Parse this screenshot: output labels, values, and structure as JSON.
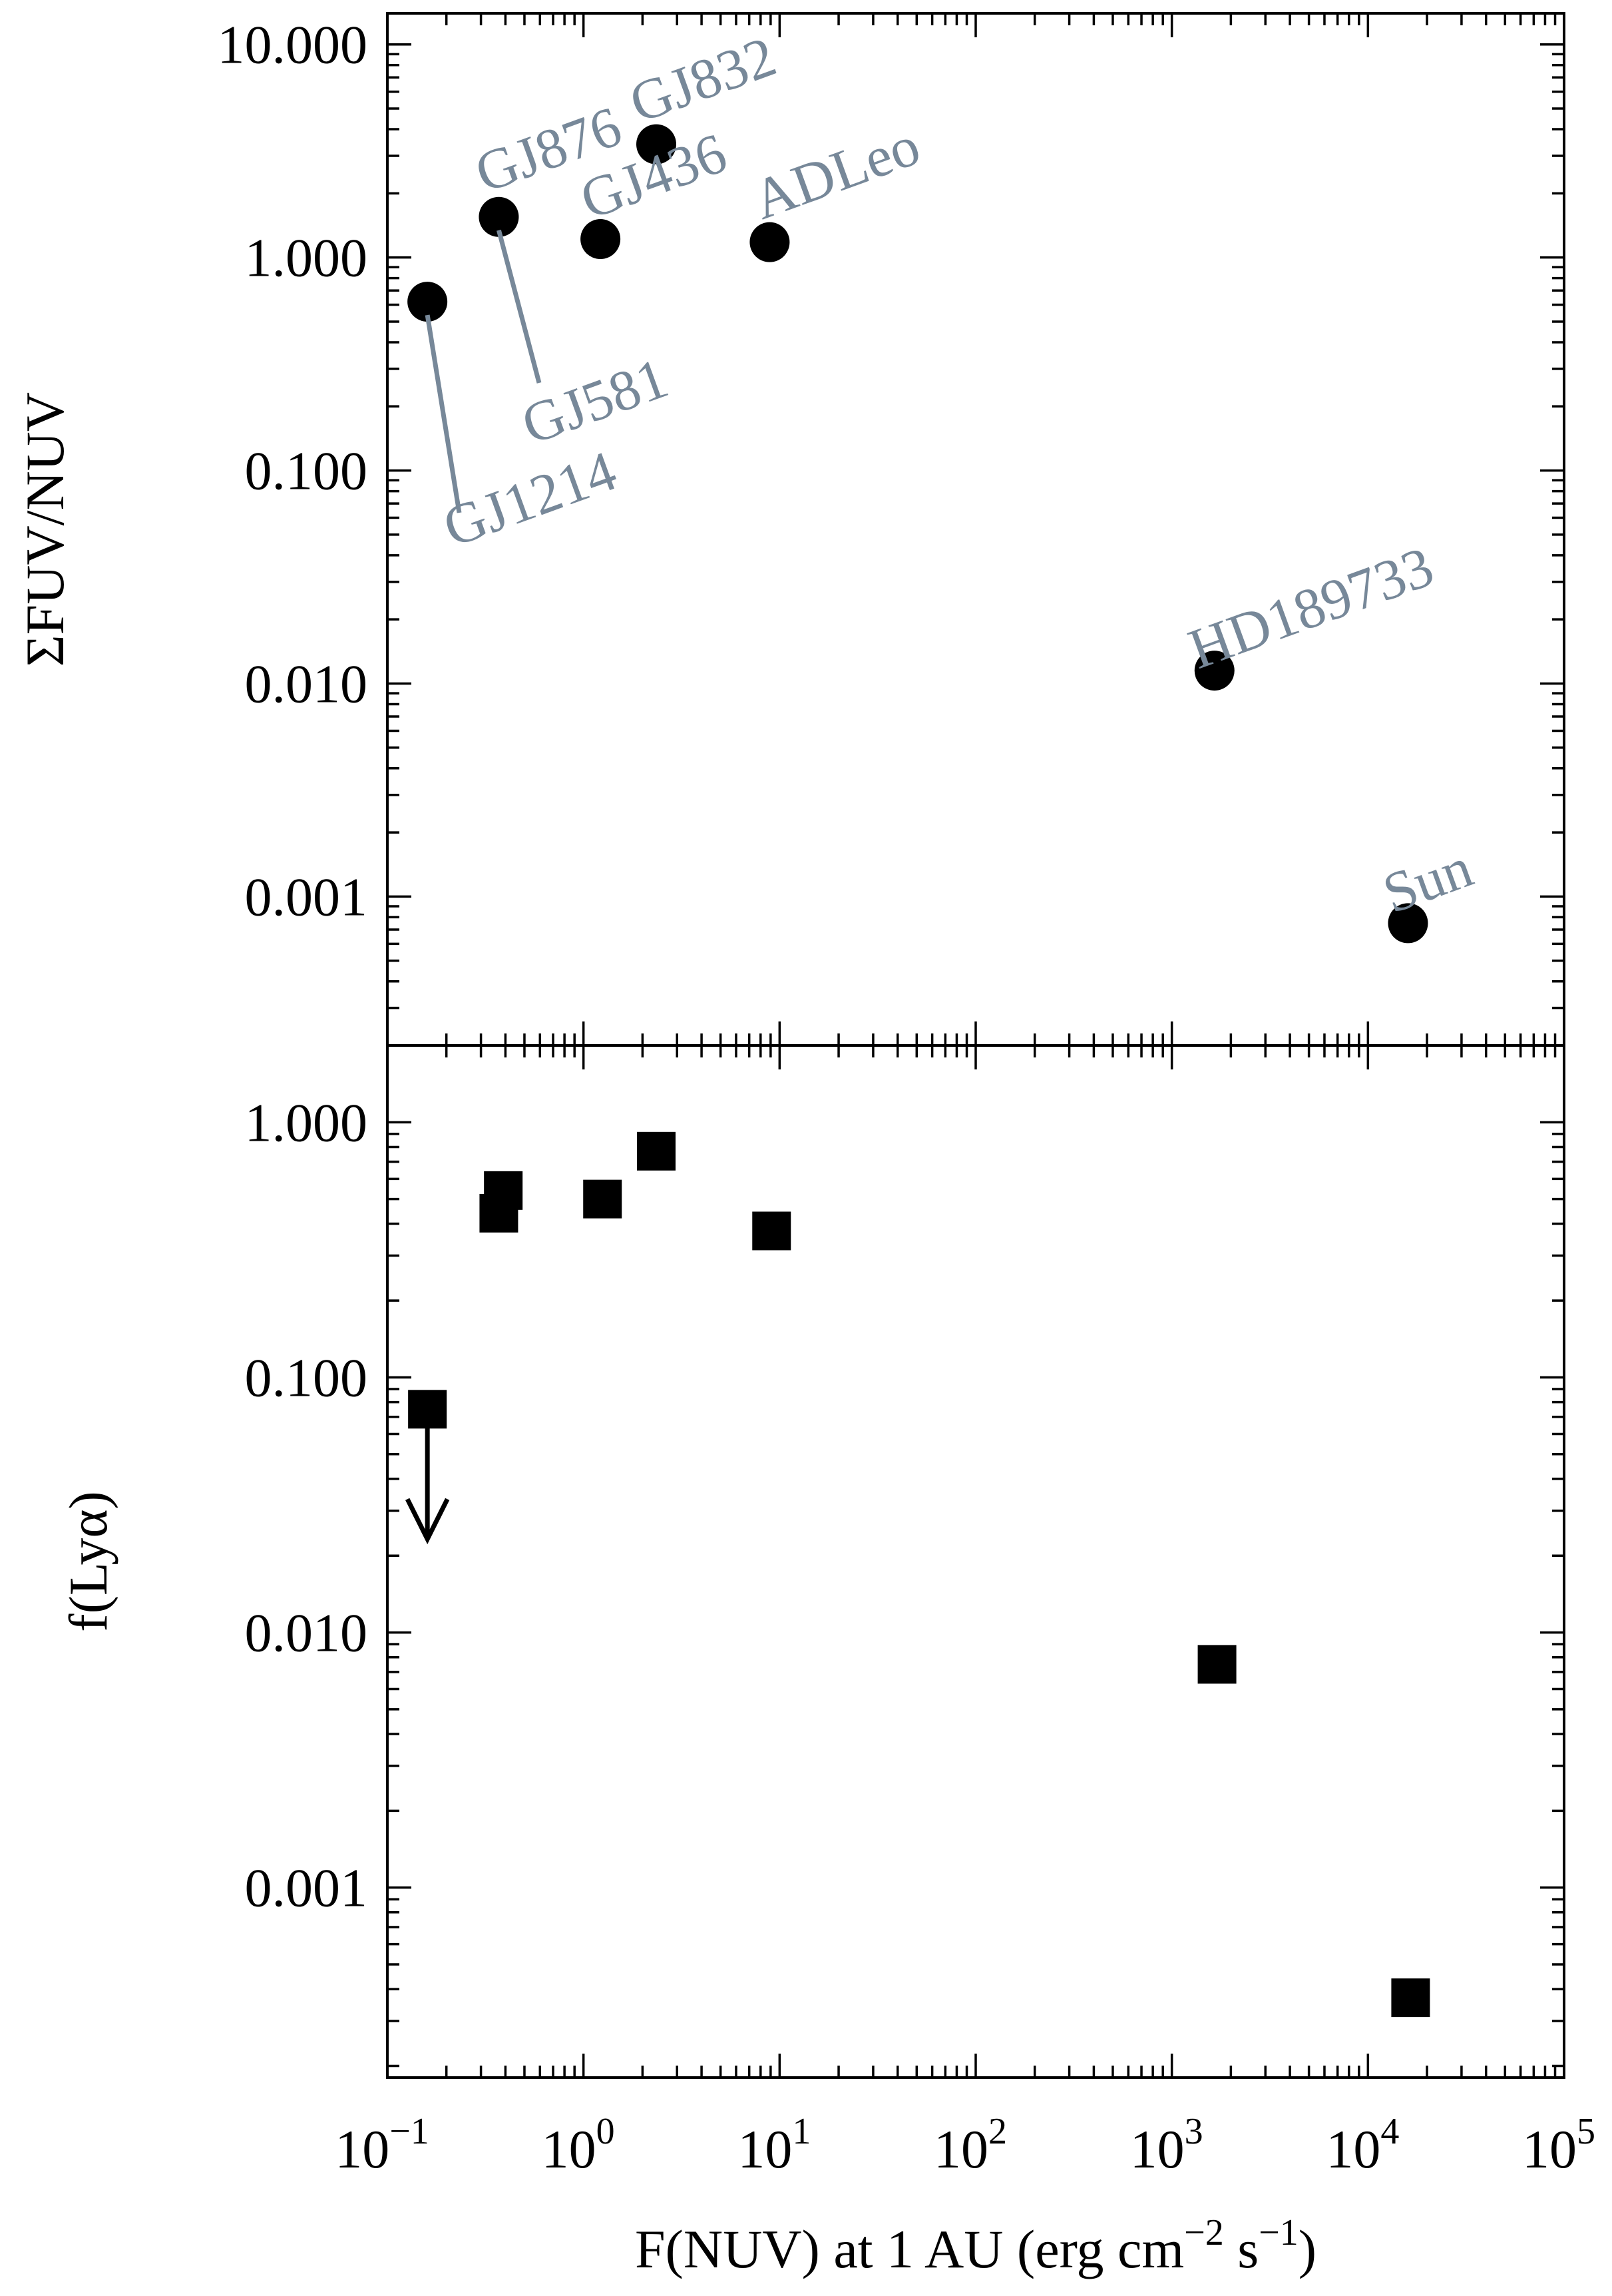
{
  "colors": {
    "marker": "#000000",
    "label": "#778899",
    "axes": "#000000"
  },
  "chart_data": [
    {
      "type": "scatter",
      "panel": "top",
      "marker": "circle",
      "xscale": "log",
      "yscale": "log",
      "xlim": [
        0.1,
        100000
      ],
      "ylim": [
        0.0002,
        14
      ],
      "ylabel": "ΣFUV/NUV",
      "yticks": [
        {
          "value": 10,
          "label": "10.000"
        },
        {
          "value": 1,
          "label": "1.000"
        },
        {
          "value": 0.1,
          "label": "0.100"
        },
        {
          "value": 0.01,
          "label": "0.010"
        },
        {
          "value": 0.001,
          "label": "0.001"
        }
      ],
      "points": [
        {
          "name": "GJ1214",
          "x": 0.16,
          "y": 0.62
        },
        {
          "name": "GJ876",
          "x": 0.37,
          "y": 1.55
        },
        {
          "name": "GJ581",
          "x": 0.37,
          "y": 1.55
        },
        {
          "name": "GJ436",
          "x": 1.22,
          "y": 1.22
        },
        {
          "name": "GJ832",
          "x": 2.35,
          "y": 3.4
        },
        {
          "name": "ADLeo",
          "x": 8.9,
          "y": 1.18
        },
        {
          "name": "HD189733",
          "x": 1650,
          "y": 0.0115
        },
        {
          "name": "Sun",
          "x": 16000,
          "y": 0.00075
        }
      ]
    },
    {
      "type": "scatter",
      "panel": "bottom",
      "marker": "square",
      "xscale": "log",
      "yscale": "log",
      "xlim": [
        0.1,
        100000
      ],
      "ylim": [
        0.00018,
        2
      ],
      "ylabel": "f(Lyα)",
      "xlabel_parts": [
        "F(NUV) at 1 AU (erg cm",
        "−2",
        " s",
        "−1",
        ")"
      ],
      "yticks": [
        {
          "value": 1,
          "label": "1.000"
        },
        {
          "value": 0.1,
          "label": "0.100"
        },
        {
          "value": 0.01,
          "label": "0.010"
        },
        {
          "value": 0.001,
          "label": "0.001"
        }
      ],
      "xticks": [
        {
          "value": 0.1,
          "base": "10",
          "exp": "−1"
        },
        {
          "value": 1,
          "base": "10",
          "exp": "0"
        },
        {
          "value": 10,
          "base": "10",
          "exp": "1"
        },
        {
          "value": 100,
          "base": "10",
          "exp": "2"
        },
        {
          "value": 1000,
          "base": "10",
          "exp": "3"
        },
        {
          "value": 10000,
          "base": "10",
          "exp": "4"
        },
        {
          "value": 100000,
          "base": "10",
          "exp": "5"
        }
      ],
      "points": [
        {
          "x": 0.16,
          "y": 0.075,
          "upper_limit": true
        },
        {
          "x": 0.37,
          "y": 0.44
        },
        {
          "x": 0.39,
          "y": 0.54
        },
        {
          "x": 1.25,
          "y": 0.5
        },
        {
          "x": 2.35,
          "y": 0.77
        },
        {
          "x": 9.1,
          "y": 0.375
        },
        {
          "x": 1700,
          "y": 0.0075
        },
        {
          "x": 16500,
          "y": 0.00037
        }
      ]
    }
  ]
}
